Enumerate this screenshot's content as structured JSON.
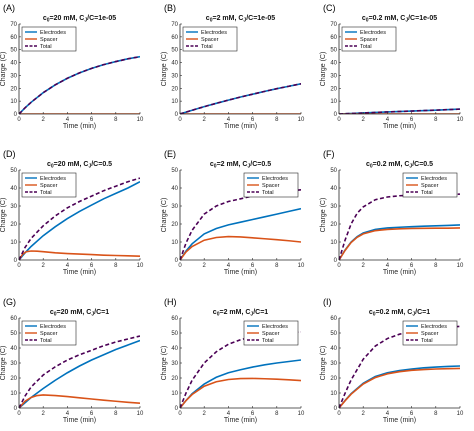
{
  "chart_data": [
    {
      "letter": "(A)",
      "title": [
        "c",
        "0",
        "=20 mM, C",
        "J",
        "/C=1e-05"
      ],
      "type": "line",
      "xlabel": "Time (min)",
      "ylabel": "Charge (C)",
      "xlim": [
        0,
        10
      ],
      "ylim": [
        0,
        70
      ],
      "xticks": [
        "0",
        "2",
        "4",
        "6",
        "8",
        "10"
      ],
      "yticks": [
        "0",
        "10",
        "20",
        "30",
        "40",
        "50",
        "60",
        "70"
      ],
      "legend": "top-left",
      "series": [
        {
          "name": "Electrodes",
          "color": "#0072BD",
          "dash": false,
          "x": [
            0,
            0.5,
            1,
            2,
            3,
            4,
            5,
            6,
            7,
            8,
            9,
            10
          ],
          "y": [
            0,
            4.8,
            9.1,
            16.6,
            22.7,
            27.8,
            32.0,
            35.5,
            38.4,
            40.8,
            42.9,
            44.6
          ]
        },
        {
          "name": "Spacer",
          "color": "#D95319",
          "dash": false,
          "x": [
            0,
            1,
            2,
            4,
            6,
            8,
            10
          ],
          "y": [
            0,
            0,
            0,
            0,
            0,
            0,
            0
          ]
        },
        {
          "name": "Total",
          "color": "#4B0055",
          "dash": true,
          "x": [
            0,
            0.5,
            1,
            2,
            3,
            4,
            5,
            6,
            7,
            8,
            9,
            10
          ],
          "y": [
            0,
            4.8,
            9.1,
            16.6,
            22.7,
            27.8,
            32.0,
            35.5,
            38.4,
            40.8,
            42.9,
            44.6
          ]
        }
      ]
    },
    {
      "letter": "(B)",
      "title": [
        "c",
        "0",
        "=2 mM, C",
        "J",
        "/C=1e-05"
      ],
      "type": "line",
      "xlabel": "Time (min)",
      "ylabel": "Charge (C)",
      "xlim": [
        0,
        10
      ],
      "ylim": [
        0,
        70
      ],
      "xticks": [
        "0",
        "2",
        "4",
        "6",
        "8",
        "10"
      ],
      "yticks": [
        "0",
        "10",
        "20",
        "30",
        "40",
        "50",
        "60",
        "70"
      ],
      "legend": "top-left",
      "series": [
        {
          "name": "Electrodes",
          "color": "#0072BD",
          "dash": false,
          "x": [
            0,
            1,
            2,
            3,
            4,
            5,
            6,
            7,
            8,
            9,
            10
          ],
          "y": [
            0,
            2.9,
            5.7,
            8.3,
            10.8,
            13.2,
            15.4,
            17.6,
            19.7,
            21.6,
            23.5
          ]
        },
        {
          "name": "Spacer",
          "color": "#D95319",
          "dash": false,
          "x": [
            0,
            2,
            4,
            6,
            8,
            10
          ],
          "y": [
            0,
            0,
            0,
            0,
            0,
            0
          ]
        },
        {
          "name": "Total",
          "color": "#4B0055",
          "dash": true,
          "x": [
            0,
            1,
            2,
            3,
            4,
            5,
            6,
            7,
            8,
            9,
            10
          ],
          "y": [
            0,
            2.9,
            5.7,
            8.3,
            10.8,
            13.2,
            15.4,
            17.6,
            19.7,
            21.6,
            23.5
          ]
        }
      ]
    },
    {
      "letter": "(C)",
      "title": [
        "c",
        "0",
        "=0.2 mM, C",
        "J",
        "/C=1e-05"
      ],
      "type": "line",
      "xlabel": "Time (min)",
      "ylabel": "Charge (C)",
      "xlim": [
        0,
        10
      ],
      "ylim": [
        0,
        70
      ],
      "xticks": [
        "0",
        "2",
        "4",
        "6",
        "8",
        "10"
      ],
      "yticks": [
        "0",
        "10",
        "20",
        "30",
        "40",
        "50",
        "60",
        "70"
      ],
      "legend": "top-left",
      "series": [
        {
          "name": "Electrodes",
          "color": "#0072BD",
          "dash": false,
          "x": [
            0,
            2,
            4,
            6,
            8,
            10
          ],
          "y": [
            0,
            0.8,
            1.6,
            2.3,
            3.0,
            3.8
          ]
        },
        {
          "name": "Spacer",
          "color": "#D95319",
          "dash": false,
          "x": [
            0,
            2,
            4,
            6,
            8,
            10
          ],
          "y": [
            0,
            0,
            0,
            0,
            0,
            0
          ]
        },
        {
          "name": "Total",
          "color": "#4B0055",
          "dash": true,
          "x": [
            0,
            2,
            4,
            6,
            8,
            10
          ],
          "y": [
            0,
            0.8,
            1.6,
            2.3,
            3.0,
            3.8
          ]
        }
      ]
    },
    {
      "letter": "(D)",
      "title": [
        "c",
        "0",
        "=20 mM, C",
        "J",
        "/C=0.5"
      ],
      "type": "line",
      "xlabel": "Time (min)",
      "ylabel": "Charge (C)",
      "xlim": [
        0,
        10
      ],
      "ylim": [
        0,
        50
      ],
      "xticks": [
        "0",
        "2",
        "4",
        "6",
        "8",
        "10"
      ],
      "yticks": [
        "0",
        "10",
        "20",
        "30",
        "40",
        "50"
      ],
      "legend": "top-left",
      "series": [
        {
          "name": "Electrodes",
          "color": "#0072BD",
          "dash": false,
          "x": [
            0,
            0.5,
            1,
            2,
            3,
            4,
            5,
            6,
            7,
            8,
            9,
            10
          ],
          "y": [
            0,
            4.0,
            7.5,
            13.5,
            18.5,
            23.0,
            27.0,
            30.5,
            34.0,
            37.0,
            40.0,
            43.5
          ]
        },
        {
          "name": "Spacer",
          "color": "#D95319",
          "dash": false,
          "x": [
            0,
            0.3,
            0.6,
            1,
            1.5,
            2,
            3,
            4,
            5,
            6,
            7,
            8,
            9,
            10
          ],
          "y": [
            0,
            3.2,
            4.6,
            5.0,
            4.9,
            4.6,
            4.0,
            3.6,
            3.3,
            3.0,
            2.7,
            2.5,
            2.3,
            2.1
          ]
        },
        {
          "name": "Total",
          "color": "#4B0055",
          "dash": true,
          "x": [
            0,
            0.5,
            1,
            2,
            3,
            4,
            5,
            6,
            7,
            8,
            9,
            10
          ],
          "y": [
            0,
            7.0,
            12.0,
            19.0,
            24.5,
            29.0,
            32.5,
            35.5,
            38.5,
            41.0,
            43.5,
            45.5
          ]
        }
      ]
    },
    {
      "letter": "(E)",
      "title": [
        "c",
        "0",
        "=2 mM, C",
        "J",
        "/C=0.5"
      ],
      "type": "line",
      "xlabel": "Time (min)",
      "ylabel": "Charge (C)",
      "xlim": [
        0,
        10
      ],
      "ylim": [
        0,
        50
      ],
      "xticks": [
        "0",
        "2",
        "4",
        "6",
        "8",
        "10"
      ],
      "yticks": [
        "0",
        "10",
        "20",
        "30",
        "40",
        "50"
      ],
      "legend": "top-right",
      "series": [
        {
          "name": "Electrodes",
          "color": "#0072BD",
          "dash": false,
          "x": [
            0,
            0.5,
            1,
            2,
            3,
            4,
            5,
            6,
            7,
            8,
            9,
            10
          ],
          "y": [
            0,
            5.0,
            9.0,
            14.5,
            17.5,
            19.5,
            21.0,
            22.5,
            24.0,
            25.5,
            27.0,
            28.5
          ]
        },
        {
          "name": "Spacer",
          "color": "#D95319",
          "dash": false,
          "x": [
            0,
            0.5,
            1,
            2,
            3,
            4,
            5,
            6,
            7,
            8,
            9,
            10
          ],
          "y": [
            0,
            4.5,
            7.5,
            11.0,
            12.5,
            13.0,
            12.8,
            12.3,
            11.8,
            11.3,
            10.7,
            10.0
          ]
        },
        {
          "name": "Total",
          "color": "#4B0055",
          "dash": true,
          "x": [
            0,
            0.5,
            1,
            2,
            3,
            4,
            5,
            6,
            7,
            8,
            9,
            10
          ],
          "y": [
            0,
            9.5,
            16.5,
            25.5,
            30.0,
            32.5,
            34.0,
            35.5,
            36.5,
            37.5,
            38.3,
            39.0
          ]
        }
      ]
    },
    {
      "letter": "(F)",
      "title": [
        "c",
        "0",
        "=0.2 mM, C",
        "J",
        "/C=0.5"
      ],
      "type": "line",
      "xlabel": "Time (min)",
      "ylabel": "Charge (C)",
      "xlim": [
        0,
        10
      ],
      "ylim": [
        0,
        50
      ],
      "xticks": [
        "0",
        "2",
        "4",
        "6",
        "8",
        "10"
      ],
      "yticks": [
        "0",
        "10",
        "20",
        "30",
        "40",
        "50"
      ],
      "legend": "top-right",
      "series": [
        {
          "name": "Electrodes",
          "color": "#0072BD",
          "dash": false,
          "x": [
            0,
            0.5,
            1,
            1.5,
            2,
            3,
            4,
            5,
            6,
            7,
            8,
            9,
            10
          ],
          "y": [
            0,
            5.5,
            10.0,
            13.0,
            15.0,
            17.0,
            17.8,
            18.2,
            18.5,
            18.8,
            19.0,
            19.2,
            19.5
          ]
        },
        {
          "name": "Spacer",
          "color": "#D95319",
          "dash": false,
          "x": [
            0,
            0.5,
            1,
            1.5,
            2,
            3,
            4,
            5,
            6,
            7,
            8,
            9,
            10
          ],
          "y": [
            0,
            5.3,
            9.7,
            12.6,
            14.5,
            16.3,
            17.0,
            17.3,
            17.5,
            17.6,
            17.7,
            17.7,
            17.8
          ]
        },
        {
          "name": "Total",
          "color": "#4B0055",
          "dash": true,
          "x": [
            0,
            0.5,
            1,
            1.5,
            2,
            3,
            4,
            5,
            6,
            7,
            8,
            9,
            10
          ],
          "y": [
            0,
            11.0,
            20.0,
            26.0,
            29.5,
            33.5,
            35.0,
            35.7,
            36.0,
            36.2,
            36.4,
            36.5,
            36.6
          ]
        }
      ]
    },
    {
      "letter": "(G)",
      "title": [
        "c",
        "0",
        "=20 mM, C",
        "J",
        "/C=1"
      ],
      "type": "line",
      "xlabel": "Time (min)",
      "ylabel": "Charge (C)",
      "xlim": [
        0,
        10
      ],
      "ylim": [
        0,
        60
      ],
      "xticks": [
        "0",
        "2",
        "4",
        "6",
        "8",
        "10"
      ],
      "yticks": [
        "0",
        "10",
        "20",
        "30",
        "40",
        "50",
        "60"
      ],
      "legend": "top-left",
      "series": [
        {
          "name": "Electrodes",
          "color": "#0072BD",
          "dash": false,
          "x": [
            0,
            0.5,
            1,
            2,
            3,
            4,
            5,
            6,
            7,
            8,
            9,
            10
          ],
          "y": [
            0,
            3.5,
            7.0,
            13.0,
            18.5,
            23.5,
            28.0,
            32.0,
            35.5,
            39.0,
            42.0,
            45.0
          ]
        },
        {
          "name": "Spacer",
          "color": "#D95319",
          "dash": false,
          "x": [
            0,
            0.5,
            1,
            1.5,
            2,
            3,
            4,
            5,
            6,
            7,
            8,
            9,
            10
          ],
          "y": [
            0,
            4.5,
            7.0,
            8.3,
            8.7,
            8.3,
            7.6,
            6.8,
            6.0,
            5.2,
            4.5,
            3.8,
            3.2
          ]
        },
        {
          "name": "Total",
          "color": "#4B0055",
          "dash": true,
          "x": [
            0,
            0.5,
            1,
            2,
            3,
            4,
            5,
            6,
            7,
            8,
            9,
            10
          ],
          "y": [
            0,
            8.0,
            14.0,
            22.0,
            27.5,
            32.0,
            35.5,
            38.5,
            41.5,
            44.0,
            46.0,
            48.0
          ]
        }
      ]
    },
    {
      "letter": "(H)",
      "title": [
        "c",
        "0",
        "=2 mM, C",
        "J",
        "/C=1"
      ],
      "type": "line",
      "xlabel": "Time (min)",
      "ylabel": "Charge (C)",
      "xlim": [
        0,
        10
      ],
      "ylim": [
        0,
        60
      ],
      "xticks": [
        "0",
        "2",
        "4",
        "6",
        "8",
        "10"
      ],
      "yticks": [
        "0",
        "10",
        "20",
        "30",
        "40",
        "50",
        "60"
      ],
      "legend": "top-right",
      "series": [
        {
          "name": "Electrodes",
          "color": "#0072BD",
          "dash": false,
          "x": [
            0,
            0.5,
            1,
            2,
            3,
            4,
            5,
            6,
            7,
            8,
            9,
            10
          ],
          "y": [
            0,
            5.0,
            9.5,
            16.0,
            20.5,
            23.5,
            25.5,
            27.3,
            28.8,
            30.0,
            31.0,
            32.0
          ]
        },
        {
          "name": "Spacer",
          "color": "#D95319",
          "dash": false,
          "x": [
            0,
            0.5,
            1,
            2,
            3,
            4,
            5,
            6,
            7,
            8,
            9,
            10
          ],
          "y": [
            0,
            5.0,
            9.0,
            14.5,
            17.5,
            19.0,
            19.6,
            19.7,
            19.5,
            19.2,
            18.8,
            18.3
          ]
        },
        {
          "name": "Total",
          "color": "#4B0055",
          "dash": true,
          "x": [
            0,
            0.5,
            1,
            2,
            3,
            4,
            5,
            6,
            7,
            8,
            9,
            10
          ],
          "y": [
            0,
            10.0,
            18.5,
            30.0,
            37.5,
            42.5,
            45.5,
            47.5,
            48.8,
            49.6,
            50.2,
            50.7
          ]
        }
      ]
    },
    {
      "letter": "(I)",
      "title": [
        "c",
        "0",
        "=0.2 mM, C",
        "J",
        "/C=1"
      ],
      "type": "line",
      "xlabel": "Time (min)",
      "ylabel": "Charge (C)",
      "xlim": [
        0,
        10
      ],
      "ylim": [
        0,
        60
      ],
      "xticks": [
        "0",
        "2",
        "4",
        "6",
        "8",
        "10"
      ],
      "yticks": [
        "0",
        "10",
        "20",
        "30",
        "40",
        "50",
        "60"
      ],
      "legend": "top-right",
      "series": [
        {
          "name": "Electrodes",
          "color": "#0072BD",
          "dash": false,
          "x": [
            0,
            0.5,
            1,
            2,
            3,
            4,
            5,
            6,
            7,
            8,
            9,
            10
          ],
          "y": [
            0,
            5.0,
            9.5,
            16.5,
            21.0,
            23.5,
            25.0,
            26.0,
            26.8,
            27.3,
            27.7,
            28.0
          ]
        },
        {
          "name": "Spacer",
          "color": "#D95319",
          "dash": false,
          "x": [
            0,
            0.5,
            1,
            2,
            3,
            4,
            5,
            6,
            7,
            8,
            9,
            10
          ],
          "y": [
            0,
            4.8,
            9.2,
            16.0,
            20.3,
            22.8,
            24.2,
            25.1,
            25.6,
            26.0,
            26.2,
            26.4
          ]
        },
        {
          "name": "Total",
          "color": "#4B0055",
          "dash": true,
          "x": [
            0,
            0.5,
            1,
            2,
            3,
            4,
            5,
            6,
            7,
            8,
            9,
            10
          ],
          "y": [
            0,
            9.8,
            18.7,
            32.5,
            41.3,
            46.3,
            49.2,
            51.1,
            52.4,
            53.3,
            53.9,
            54.4
          ]
        }
      ]
    }
  ]
}
